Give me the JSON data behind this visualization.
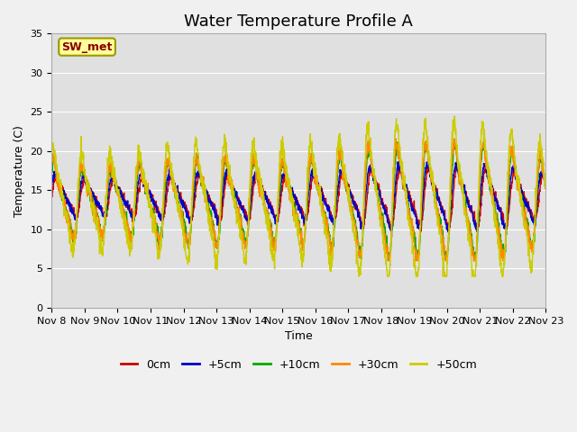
{
  "title": "Water Temperature Profile A",
  "xlabel": "Time",
  "ylabel": "Temperature (C)",
  "ylim": [
    0,
    35
  ],
  "yticks": [
    0,
    5,
    10,
    15,
    20,
    25,
    30,
    35
  ],
  "xtick_labels": [
    "Nov 8",
    "Nov 9",
    "Nov 10",
    "Nov 11",
    "Nov 12",
    "Nov 13",
    "Nov 14",
    "Nov 15",
    "Nov 16",
    "Nov 17",
    "Nov 18",
    "Nov 19",
    "Nov 20",
    "Nov 21",
    "Nov 22",
    "Nov 23"
  ],
  "series": [
    {
      "label": "0cm",
      "color": "#cc0000"
    },
    {
      "label": "+5cm",
      "color": "#0000cc"
    },
    {
      "label": "+10cm",
      "color": "#00aa00"
    },
    {
      "label": "+30cm",
      "color": "#ff8800"
    },
    {
      "label": "+50cm",
      "color": "#cccc00"
    }
  ],
  "annotation_text": "SW_met",
  "annotation_fgcolor": "#880000",
  "annotation_bgcolor": "#ffff99",
  "annotation_bordercolor": "#999900",
  "fig_facecolor": "#f0f0f0",
  "ax_facecolor": "#e0e0e0",
  "grid_color": "#ffffff",
  "title_fontsize": 13,
  "axis_fontsize": 9,
  "tick_fontsize": 8,
  "legend_fontsize": 9,
  "num_days": 15,
  "samples_per_day": 144
}
